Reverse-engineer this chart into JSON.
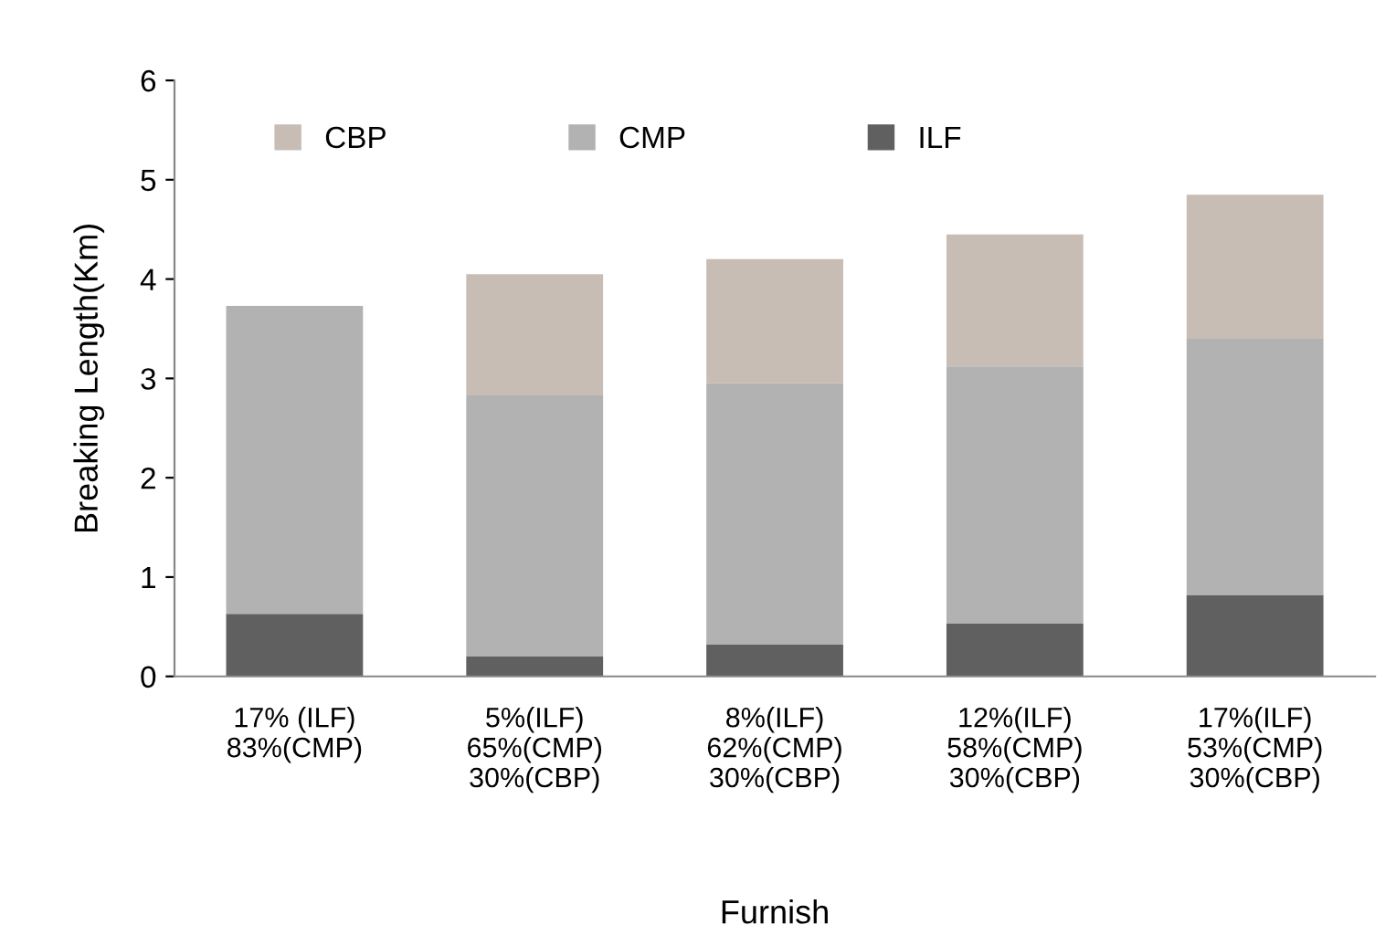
{
  "chart_data": {
    "type": "bar",
    "stacked": true,
    "xlabel": "Furnish",
    "ylabel": "Breaking Length(Km)",
    "categories": [
      "17% (ILF)\n83%(CMP)",
      "5%(ILF)\n65%(CMP)\n30%(CBP)",
      "8%(ILF)\n62%(CMP)\n30%(CBP)",
      "12%(ILF)\n58%(CMP)\n30%(CBP)",
      "17%(ILF)\n53%(CMP)\n30%(CBP)"
    ],
    "series": [
      {
        "name": "ILF",
        "color": "#606060",
        "values": [
          0.63,
          0.2,
          0.32,
          0.53,
          0.82
        ]
      },
      {
        "name": "CMP",
        "color": "#b2b2b2",
        "values": [
          3.1,
          2.63,
          2.63,
          2.59,
          2.58
        ]
      },
      {
        "name": "CBP",
        "color": "#c8bdb5",
        "values": [
          null,
          1.22,
          1.25,
          1.33,
          1.45
        ]
      }
    ],
    "ylim": [
      0,
      6
    ],
    "yticks": [
      0,
      1,
      2,
      3,
      4,
      5,
      6
    ],
    "grid": false,
    "legend": "top"
  }
}
